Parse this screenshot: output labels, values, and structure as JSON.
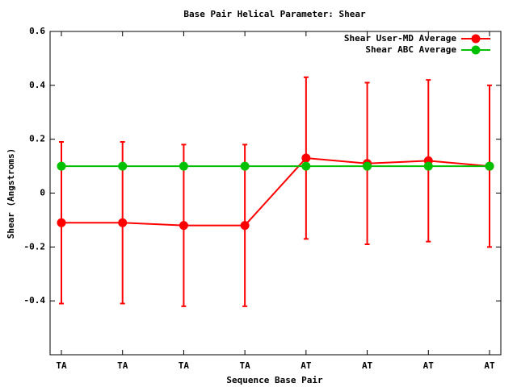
{
  "chart_data": {
    "type": "line",
    "title": "Base Pair Helical Parameter: Shear",
    "x_label": "Sequence Base Pair",
    "y_label": "Shear (Angstroms)",
    "categories": [
      "TA",
      "TA",
      "TA",
      "TA",
      "AT",
      "AT",
      "AT",
      "AT"
    ],
    "series": [
      {
        "name": "Shear User-MD Average",
        "color": "#ff0000",
        "values": [
          -0.11,
          -0.11,
          -0.12,
          -0.12,
          0.13,
          0.11,
          0.12,
          0.1
        ],
        "errors": [
          0.3,
          0.3,
          0.3,
          0.3,
          0.3,
          0.3,
          0.3,
          0.3
        ]
      },
      {
        "name": "Shear ABC Average",
        "color": "#00c000",
        "values": [
          0.1,
          0.1,
          0.1,
          0.1,
          0.1,
          0.1,
          0.1,
          0.1
        ]
      }
    ],
    "ylim": [
      -0.6,
      0.6
    ],
    "yticks": [
      -0.4,
      -0.2,
      0,
      0.2,
      0.4,
      0.6
    ],
    "legend": "top-right"
  }
}
